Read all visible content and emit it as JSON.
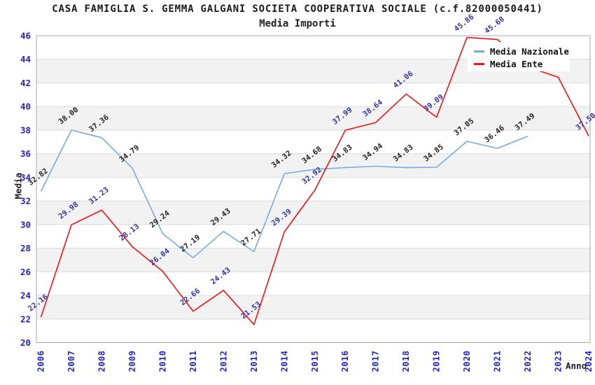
{
  "chart_data": {
    "type": "line",
    "title": "CASA FAMIGLIA S. GEMMA GALGANI SOCIETA COOPERATIVA SOCIALE (c.f.82000050441)",
    "subtitle": "Media Importi",
    "xlabel": "Anno",
    "ylabel": "Media",
    "x": [
      2006,
      2007,
      2008,
      2009,
      2010,
      2011,
      2012,
      2013,
      2014,
      2015,
      2016,
      2017,
      2018,
      2019,
      2020,
      2021,
      2022,
      2023,
      2024
    ],
    "ylim": [
      20,
      46
    ],
    "ytick_step": 2,
    "grid": true,
    "alternating_bands": true,
    "legend_position": "top-right",
    "colors": {
      "axis_text": "#2222cc",
      "band": "#f2f2f2",
      "gridline": "#dcdcdc",
      "plot_border": "#a8a8a8"
    },
    "series": [
      {
        "name": "Media Nazionale",
        "color": "#74abe2",
        "label_color": "#222222",
        "values": [
          32.82,
          38.0,
          37.36,
          34.79,
          29.24,
          27.19,
          29.43,
          27.71,
          34.32,
          34.68,
          34.83,
          34.94,
          34.83,
          34.85,
          37.05,
          36.46,
          37.49,
          null,
          null
        ]
      },
      {
        "name": "Media Ente",
        "color": "#f01414",
        "label_color": "#3333a2",
        "values": [
          22.16,
          29.98,
          31.23,
          28.13,
          26.04,
          22.66,
          24.43,
          21.53,
          29.39,
          32.92,
          37.99,
          38.64,
          41.06,
          39.09,
          45.86,
          45.68,
          43.35,
          42.48,
          37.5
        ],
        "labels_hidden_by_legend": [
          2022,
          2023
        ]
      }
    ]
  }
}
